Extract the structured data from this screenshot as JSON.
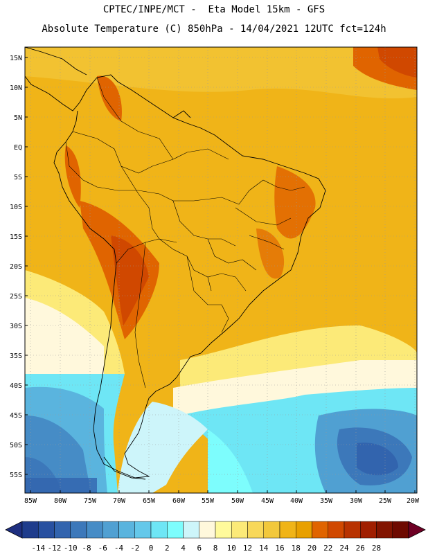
{
  "header": {
    "line1": "CPTEC/INPE/MCT -  Eta Model 15km - GFS",
    "line2": "Absolute Temperature (C) 850hPa - 14/04/2021 12UTC fct=124h"
  },
  "axes": {
    "lat_labels": [
      "15N",
      "10N",
      "5N",
      "EQ",
      "5S",
      "10S",
      "15S",
      "20S",
      "25S",
      "30S",
      "35S",
      "40S",
      "45S",
      "50S",
      "55S"
    ],
    "lon_labels": [
      "85W",
      "80W",
      "75W",
      "70W",
      "65W",
      "60W",
      "55W",
      "50W",
      "45W",
      "40W",
      "35W",
      "30W",
      "25W",
      "20W"
    ]
  },
  "colorbar": {
    "labels": [
      "-14",
      "-12",
      "-10",
      "-8",
      "-6",
      "-4",
      "-2",
      "0",
      "2",
      "4",
      "6",
      "8",
      "10",
      "12",
      "14",
      "16",
      "18",
      "20",
      "22",
      "24",
      "26",
      "28"
    ],
    "colors": [
      "#1e3c8c",
      "#2850a0",
      "#3264ae",
      "#3c78ba",
      "#468cc6",
      "#50a0d2",
      "#5ab4de",
      "#64c8ea",
      "#6ee6f5",
      "#7dfdfd",
      "#cdf5fa",
      "#fff8dc",
      "#fffa9b",
      "#fcea78",
      "#f8d85a",
      "#f2c83c",
      "#f0b418",
      "#e8a000",
      "#e06400",
      "#d04800",
      "#b83200",
      "#a01e00",
      "#821400",
      "#6e0a00"
    ],
    "low_arrow": "#1e2f80",
    "high_arrow": "#6e0024"
  }
}
